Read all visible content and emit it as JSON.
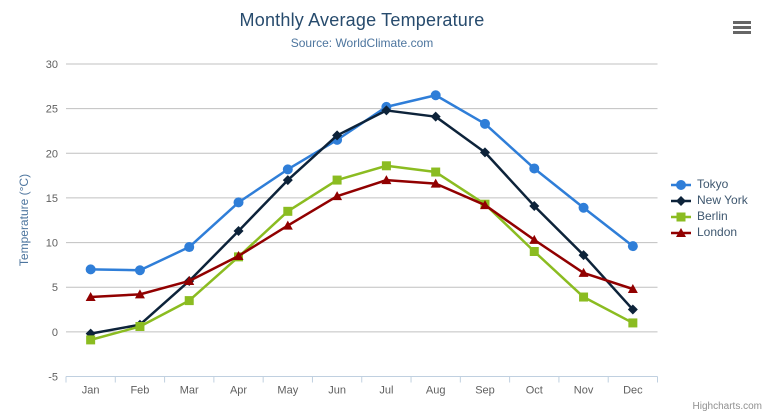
{
  "chart_data": {
    "type": "line",
    "title": "Monthly Average Temperature",
    "subtitle": "Source: WorldClimate.com",
    "xlabel": "",
    "ylabel": "Temperature (°C)",
    "ylim": [
      -5,
      30
    ],
    "ytick_interval": 5,
    "grid": true,
    "legend_position": "right-middle",
    "categories": [
      "Jan",
      "Feb",
      "Mar",
      "Apr",
      "May",
      "Jun",
      "Jul",
      "Aug",
      "Sep",
      "Oct",
      "Nov",
      "Dec"
    ],
    "series": [
      {
        "name": "Tokyo",
        "color": "#2f7ed8",
        "marker": "circle",
        "values": [
          7.0,
          6.9,
          9.5,
          14.5,
          18.2,
          21.5,
          25.2,
          26.5,
          23.3,
          18.3,
          13.9,
          9.6
        ]
      },
      {
        "name": "New York",
        "color": "#0d233a",
        "marker": "diamond",
        "values": [
          -0.2,
          0.8,
          5.7,
          11.3,
          17.0,
          22.0,
          24.8,
          24.1,
          20.1,
          14.1,
          8.6,
          2.5
        ]
      },
      {
        "name": "Berlin",
        "color": "#8bbc21",
        "marker": "square",
        "values": [
          -0.9,
          0.6,
          3.5,
          8.4,
          13.5,
          17.0,
          18.6,
          17.9,
          14.3,
          9.0,
          3.9,
          1.0
        ]
      },
      {
        "name": "London",
        "color": "#910000",
        "marker": "triangle",
        "values": [
          3.9,
          4.2,
          5.7,
          8.5,
          11.9,
          15.2,
          17.0,
          16.6,
          14.2,
          10.3,
          6.6,
          4.8
        ]
      }
    ]
  },
  "credits": {
    "label": "Highcharts.com"
  },
  "theme": {
    "title_color": "#274b6d",
    "subtitle_color": "#4d759e",
    "yaxis_title_color": "#4d759e",
    "axis_label_color": "#606060",
    "grid_color": "#c0c0c0",
    "axis_line_color": "#c0d0e0",
    "legend_text_color": "#3e576f",
    "credits_color": "#909090",
    "menu_icon_color": "#666666",
    "background": "#ffffff"
  }
}
